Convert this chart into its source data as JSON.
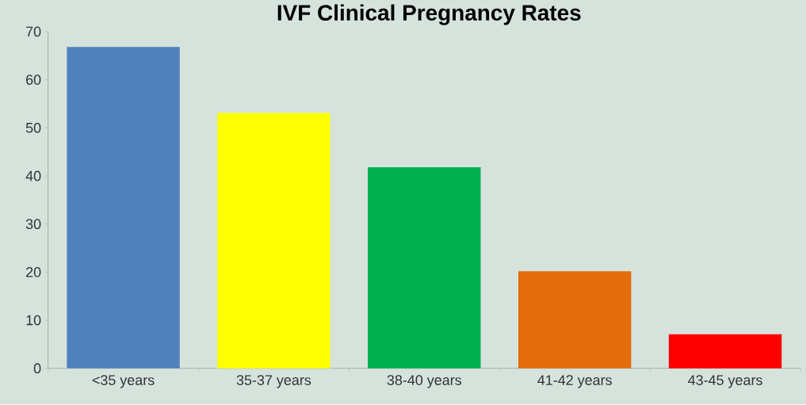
{
  "chart_data": {
    "type": "bar",
    "title": "IVF Clinical Pregnancy Rates",
    "categories": [
      "<35 years",
      "35-37 years",
      "38-40 years",
      "41-42 years",
      "43-45 years"
    ],
    "values": [
      66.8,
      53.1,
      41.8,
      20.2,
      7.1
    ],
    "colors": [
      "#4f81bd",
      "#ffff00",
      "#00b050",
      "#e46c0a",
      "#ff0000"
    ],
    "ylim": [
      0,
      70
    ],
    "yticks": [
      0,
      10,
      20,
      30,
      40,
      50,
      60,
      70
    ],
    "grid": false
  }
}
